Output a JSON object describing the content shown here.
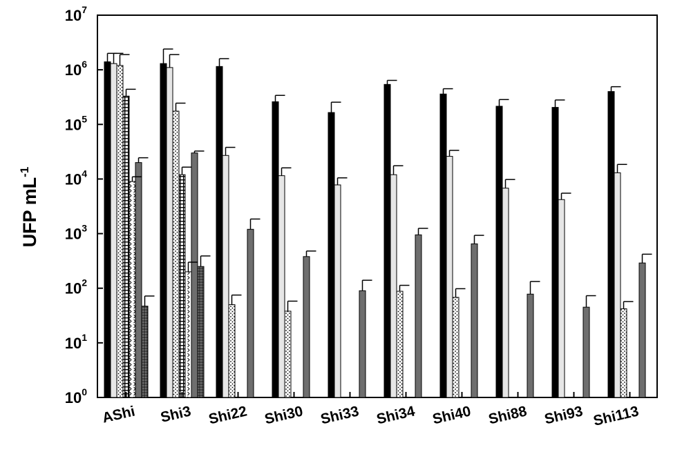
{
  "chart_data": {
    "type": "bar",
    "title": "",
    "xlabel": "",
    "ylabel": {
      "base": "UFP mL",
      "sup": "-1"
    },
    "y_scale": "log",
    "ylim": [
      1,
      10000000
    ],
    "yticks": [
      {
        "base": "10",
        "exp": "0"
      },
      {
        "base": "10",
        "exp": "1"
      },
      {
        "base": "10",
        "exp": "2"
      },
      {
        "base": "10",
        "exp": "3"
      },
      {
        "base": "10",
        "exp": "4"
      },
      {
        "base": "10",
        "exp": "5"
      },
      {
        "base": "10",
        "exp": "6"
      },
      {
        "base": "10",
        "exp": "7"
      }
    ],
    "categories": [
      "AShi",
      "Shi3",
      "Shi22",
      "Shi30",
      "Shi33",
      "Shi34",
      "Shi40",
      "Shi88",
      "Shi93",
      "Shi113"
    ],
    "grid": false,
    "legend": "none",
    "series": [
      {
        "pattern": "solid-black",
        "fill": "#000000",
        "values": [
          1400000,
          1300000,
          1150000,
          260000,
          165000,
          540000,
          360000,
          215000,
          205000,
          400000
        ],
        "errors": [
          600000,
          1100000,
          450000,
          80000,
          90000,
          100000,
          90000,
          70000,
          75000,
          90000
        ]
      },
      {
        "pattern": "light-gray",
        "fill": "#e6e6e6",
        "values": [
          1300000,
          1100000,
          27000,
          11500,
          7800,
          12000,
          26000,
          6800,
          4200,
          13000
        ],
        "errors": [
          700000,
          800000,
          11000,
          4500,
          2700,
          5500,
          7500,
          3000,
          1300,
          5500
        ]
      },
      {
        "pattern": "dots",
        "fill": "#ffffff",
        "values": [
          1200000,
          175000,
          50,
          38,
          null,
          88,
          68,
          null,
          null,
          42
        ],
        "errors": [
          700000,
          70000,
          25,
          20,
          null,
          25,
          30,
          null,
          null,
          15
        ]
      },
      {
        "pattern": "grid",
        "fill": "#ffffff",
        "values": [
          330000,
          12000,
          null,
          null,
          null,
          null,
          null,
          null,
          null,
          null
        ],
        "errors": [
          110000,
          4500,
          null,
          null,
          null,
          null,
          null,
          null,
          null,
          null
        ]
      },
      {
        "pattern": "chevrons",
        "fill": "#ffffff",
        "values": [
          9000,
          200,
          null,
          null,
          null,
          null,
          null,
          null,
          null,
          null
        ],
        "errors": [
          2000,
          100,
          null,
          null,
          null,
          null,
          null,
          null,
          null,
          null
        ]
      },
      {
        "pattern": "dark-gray",
        "fill": "#6e6e6e",
        "values": [
          20000,
          30000,
          1200,
          380,
          90,
          950,
          650,
          78,
          45,
          290
        ],
        "errors": [
          4500,
          2500,
          650,
          100,
          50,
          300,
          280,
          55,
          28,
          130
        ]
      },
      {
        "pattern": "dark-dots",
        "fill": "#505050",
        "values": [
          47,
          250,
          null,
          null,
          null,
          null,
          null,
          null,
          null,
          null
        ],
        "errors": [
          25,
          140,
          null,
          null,
          null,
          null,
          null,
          null,
          null,
          null
        ]
      }
    ]
  }
}
